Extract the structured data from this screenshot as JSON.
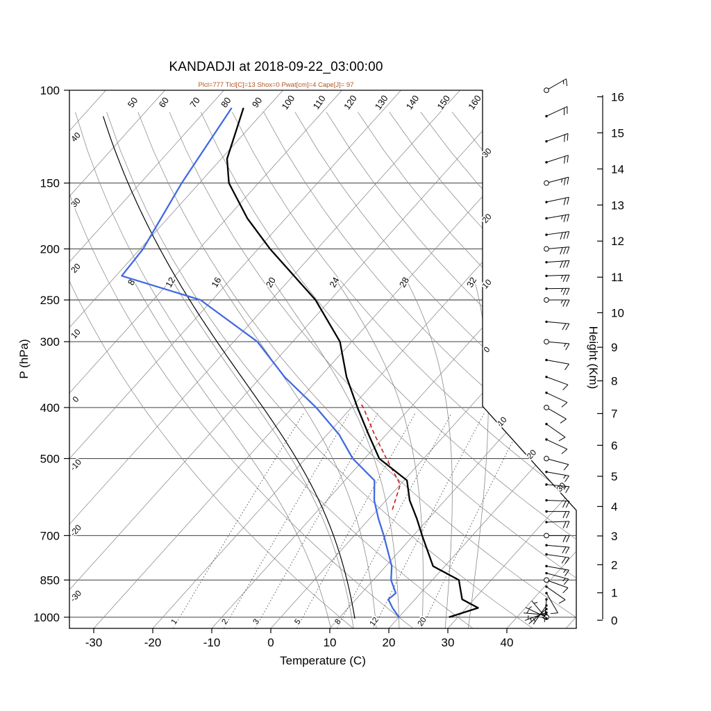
{
  "header": {
    "title": "KANDADJI at 2018-09-22_03:00:00",
    "subtitle": "Plcl=777 Tlcl[C]=13 Shox=0 Pwat[cm]=4 Cape[J]= 97",
    "subtitle_color": "#b5521b"
  },
  "chart_data": {
    "type": "skewt",
    "station": "KANDADJI",
    "time": "2018-09-22_03:00:00",
    "indices": {
      "Plcl": 777,
      "Tlcl_C": 13,
      "Shox": 0,
      "Pwat_cm": 4,
      "Cape_J": 97
    },
    "axes": {
      "x_label": "Temperature (C)",
      "y_left_label": "P (hPa)",
      "y_right_label": "Height (Km)",
      "pressure_ticks_hPa": [
        100,
        150,
        200,
        250,
        300,
        400,
        500,
        700,
        850,
        1000
      ],
      "temperature_ticks_C": [
        -30,
        -20,
        -10,
        0,
        10,
        20,
        30,
        40
      ],
      "height_ticks_km": [
        0,
        1,
        2,
        3,
        4,
        5,
        6,
        7,
        8,
        9,
        10,
        11,
        12,
        13,
        14,
        15,
        16
      ],
      "pressure_range_hPa": [
        100,
        1050
      ],
      "skew_deg": 45
    },
    "background": {
      "isotherms_C": [
        -110,
        -100,
        -90,
        -80,
        -70,
        -60,
        -50,
        -40,
        -30,
        -20,
        -10,
        0,
        10,
        20,
        30,
        40,
        50
      ],
      "isotherm_labels_left": [
        "40",
        "30",
        "20",
        "10",
        "0",
        "-10",
        "-20",
        "-30"
      ],
      "isotherm_labels_right": [
        "30",
        "20",
        "10",
        "0"
      ],
      "isotherm_labels_diagonal": [
        "10",
        "20",
        "30"
      ],
      "dry_adiabats_C": [
        10,
        20,
        30,
        40,
        50,
        60,
        70,
        80,
        90,
        100,
        110,
        120,
        130,
        140,
        150,
        160,
        170
      ],
      "dry_adiabat_labels": [
        "50",
        "60",
        "70",
        "80",
        "90",
        "100",
        "110",
        "120",
        "130",
        "140",
        "150",
        "160"
      ],
      "moist_adiabats_C": [
        8,
        12,
        16,
        20,
        24,
        28,
        32
      ],
      "mixing_ratio_g_kg": [
        1,
        2,
        3,
        5,
        8,
        12,
        20
      ],
      "line_color": "#888888"
    },
    "series": {
      "temperature": {
        "name": "Temperature",
        "color": "#000000",
        "points_p_T": [
          [
            1000,
            28.5
          ],
          [
            960,
            32
          ],
          [
            925,
            28
          ],
          [
            850,
            24.5
          ],
          [
            800,
            18
          ],
          [
            700,
            11.5
          ],
          [
            650,
            8
          ],
          [
            600,
            4
          ],
          [
            550,
            0.5
          ],
          [
            500,
            -7.5
          ],
          [
            450,
            -13
          ],
          [
            400,
            -19
          ],
          [
            350,
            -25.5
          ],
          [
            300,
            -32
          ],
          [
            250,
            -42.5
          ],
          [
            200,
            -58
          ],
          [
            175,
            -66.5
          ],
          [
            150,
            -75
          ],
          [
            135,
            -79
          ],
          [
            108,
            -84
          ]
        ]
      },
      "dewpoint": {
        "name": "Dew point",
        "color": "#4169e1",
        "points_p_T": [
          [
            1000,
            20
          ],
          [
            960,
            17.5
          ],
          [
            925,
            15.5
          ],
          [
            900,
            15.8
          ],
          [
            850,
            13
          ],
          [
            800,
            11
          ],
          [
            700,
            5
          ],
          [
            650,
            1.5
          ],
          [
            600,
            -2
          ],
          [
            550,
            -5
          ],
          [
            500,
            -12
          ],
          [
            450,
            -18
          ],
          [
            400,
            -26
          ],
          [
            350,
            -36
          ],
          [
            300,
            -46
          ],
          [
            250,
            -62
          ],
          [
            225,
            -79
          ],
          [
            200,
            -79.5
          ],
          [
            150,
            -83
          ],
          [
            108,
            -86
          ]
        ]
      },
      "parcel": {
        "name": "Parcel (CAPE)",
        "color": "#cc2222",
        "dashed": true,
        "points_p_T": [
          [
            625,
            2.5
          ],
          [
            560,
            0
          ],
          [
            500,
            -6.3
          ],
          [
            450,
            -12
          ],
          [
            400,
            -18
          ],
          [
            392,
            -19.2
          ]
        ]
      },
      "moist_reference_curve": {
        "name": "Moist adiabat through LCL",
        "color": "#000000",
        "theta_w_C": 12.5,
        "p_range_hPa": [
          112,
          1005
        ]
      }
    },
    "wind_barbs": {
      "levels_p_spd_dir_mand": [
        [
          100,
          15,
          60,
          1
        ],
        [
          112,
          18,
          65,
          0
        ],
        [
          125,
          20,
          70,
          0
        ],
        [
          137,
          20,
          72,
          0
        ],
        [
          150,
          25,
          75,
          1
        ],
        [
          163,
          22,
          78,
          0
        ],
        [
          175,
          25,
          80,
          0
        ],
        [
          188,
          28,
          82,
          0
        ],
        [
          200,
          30,
          85,
          1
        ],
        [
          212,
          28,
          86,
          0
        ],
        [
          225,
          25,
          88,
          0
        ],
        [
          238,
          25,
          89,
          0
        ],
        [
          250,
          25,
          90,
          1
        ],
        [
          275,
          18,
          95,
          0
        ],
        [
          300,
          15,
          95,
          1
        ],
        [
          325,
          12,
          100,
          0
        ],
        [
          350,
          10,
          110,
          0
        ],
        [
          375,
          10,
          115,
          0
        ],
        [
          400,
          10,
          120,
          1
        ],
        [
          430,
          8,
          125,
          0
        ],
        [
          460,
          8,
          115,
          0
        ],
        [
          500,
          12,
          105,
          1
        ],
        [
          530,
          15,
          100,
          0
        ],
        [
          560,
          15,
          95,
          0
        ],
        [
          600,
          18,
          92,
          0
        ],
        [
          630,
          20,
          90,
          0
        ],
        [
          660,
          20,
          88,
          0
        ],
        [
          700,
          20,
          90,
          1
        ],
        [
          730,
          18,
          95,
          0
        ],
        [
          760,
          18,
          98,
          0
        ],
        [
          800,
          15,
          100,
          0
        ],
        [
          825,
          13,
          105,
          0
        ],
        [
          850,
          12,
          110,
          1
        ],
        [
          875,
          10,
          125,
          0
        ],
        [
          900,
          8,
          150,
          0
        ],
        [
          925,
          7,
          185,
          0
        ],
        [
          950,
          7,
          215,
          0
        ],
        [
          965,
          6,
          230,
          0
        ],
        [
          980,
          5,
          250,
          0
        ],
        [
          990,
          4,
          275,
          0
        ],
        [
          1000,
          5,
          295,
          1
        ],
        [
          1005,
          4,
          320,
          0
        ]
      ]
    }
  }
}
